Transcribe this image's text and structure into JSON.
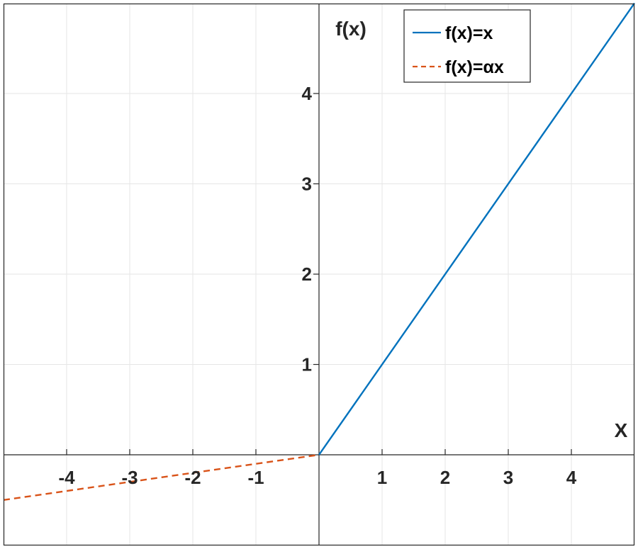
{
  "chart_data": {
    "type": "line",
    "xlabel": "X",
    "ylabel": "f(x)",
    "xlim": [
      -5,
      5
    ],
    "ylim": [
      -1,
      5
    ],
    "x_ticks": [
      -4,
      -3,
      -2,
      -1,
      1,
      2,
      3,
      4
    ],
    "x_tick_labels": [
      "-4",
      "-3",
      "-2",
      "-1",
      "1",
      "2",
      "3",
      "4"
    ],
    "y_ticks": [
      1,
      2,
      3,
      4
    ],
    "y_tick_labels": [
      "1",
      "2",
      "3",
      "4"
    ],
    "grid": true,
    "legend_position": "top-right",
    "series": [
      {
        "name": "f(x)=x",
        "style": "solid",
        "color": "#0072BD",
        "points": [
          [
            0,
            0
          ],
          [
            5,
            5
          ]
        ]
      },
      {
        "name": "f(x)=αx",
        "style": "dashed",
        "color": "#D95319",
        "points": [
          [
            -5,
            -0.5
          ],
          [
            0,
            0
          ]
        ]
      }
    ]
  }
}
